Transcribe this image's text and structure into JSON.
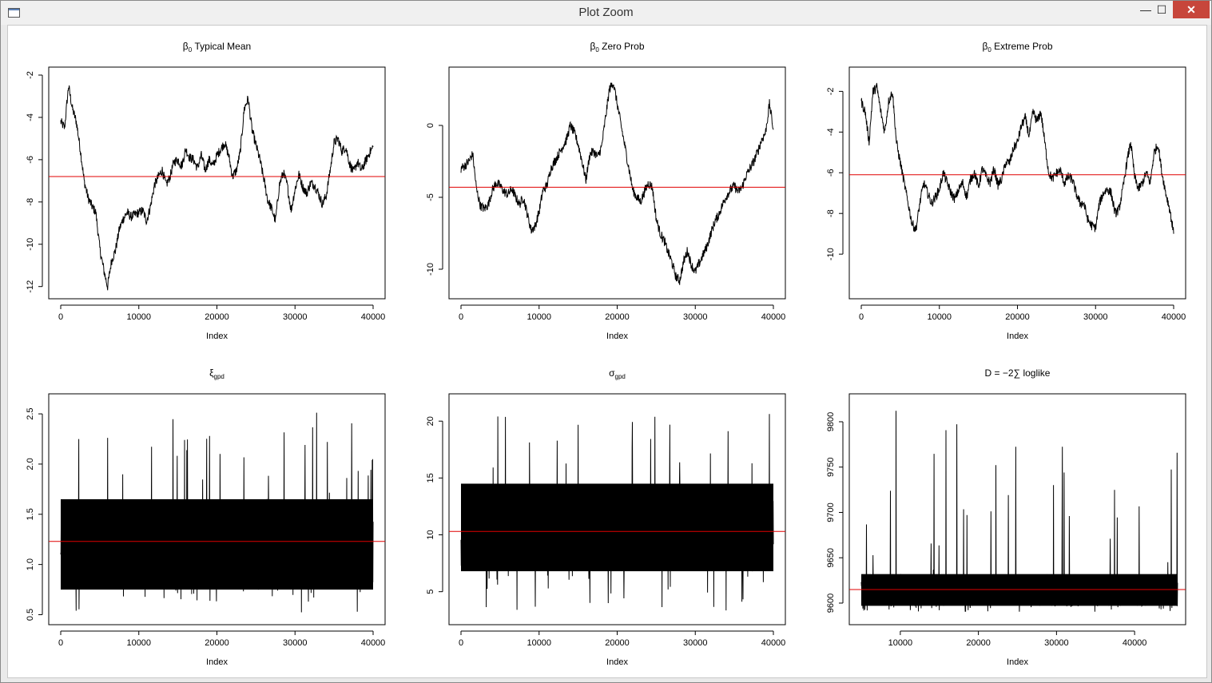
{
  "window": {
    "title": "Plot Zoom",
    "minimize_glyph": "—",
    "maximize_glyph": "☐",
    "close_glyph": "✕"
  },
  "chart_data": [
    {
      "type": "line",
      "title_sym": "β",
      "title_sub": "0",
      "title_rest": " Typical Mean",
      "xlabel": "Index",
      "xlim": [
        0,
        40000
      ],
      "ylim": [
        -12.2,
        -2.0
      ],
      "xticks": [
        0,
        10000,
        20000,
        30000,
        40000
      ],
      "yticks": [
        -12,
        -10,
        -8,
        -6,
        -4,
        -2
      ],
      "mean_line": -6.8,
      "x": [
        0,
        500,
        1000,
        1500,
        2000,
        2500,
        3000,
        3500,
        4000,
        4500,
        5000,
        5500,
        6000,
        6500,
        7000,
        7500,
        8000,
        8500,
        9000,
        9500,
        10000,
        10500,
        11000,
        11500,
        12000,
        12500,
        13000,
        13500,
        14000,
        14500,
        15000,
        15500,
        16000,
        16500,
        17000,
        17500,
        18000,
        18500,
        19000,
        19500,
        20000,
        20500,
        21000,
        21500,
        22000,
        22500,
        23000,
        23500,
        24000,
        24500,
        25000,
        25500,
        26000,
        26500,
        27000,
        27500,
        28000,
        28500,
        29000,
        29500,
        30000,
        30500,
        31000,
        31500,
        32000,
        32500,
        33000,
        33500,
        34000,
        34500,
        35000,
        35500,
        36000,
        36500,
        37000,
        37500,
        38000,
        38500,
        39000,
        39500,
        40000
      ],
      "y": [
        -4.2,
        -4.5,
        -2.5,
        -3.6,
        -4.2,
        -5.5,
        -7.0,
        -7.8,
        -8.2,
        -8.5,
        -10.2,
        -11.2,
        -12.0,
        -10.8,
        -10.3,
        -9.3,
        -8.8,
        -8.5,
        -8.7,
        -8.6,
        -8.5,
        -8.4,
        -8.9,
        -8.2,
        -7.2,
        -6.8,
        -6.5,
        -7.2,
        -6.8,
        -6.1,
        -6.0,
        -6.3,
        -5.5,
        -5.9,
        -6.0,
        -6.4,
        -5.8,
        -6.5,
        -6.0,
        -6.3,
        -5.8,
        -5.5,
        -5.2,
        -5.8,
        -6.8,
        -6.5,
        -5.6,
        -3.6,
        -3.1,
        -4.6,
        -5.3,
        -6.0,
        -6.9,
        -7.9,
        -8.3,
        -8.9,
        -7.2,
        -6.6,
        -7.2,
        -8.4,
        -7.4,
        -6.7,
        -7.3,
        -7.6,
        -7.1,
        -7.2,
        -7.6,
        -8.1,
        -7.7,
        -6.5,
        -5.2,
        -5.0,
        -5.6,
        -5.4,
        -6.2,
        -6.6,
        -6.1,
        -6.5,
        -6.1,
        -5.7,
        -5.4
      ]
    },
    {
      "type": "line",
      "title_sym": "β",
      "title_sub": "0",
      "title_rest": " Zero Prob",
      "xlabel": "Index",
      "xlim": [
        0,
        40000
      ],
      "ylim": [
        -11.5,
        3.5
      ],
      "xticks": [
        0,
        10000,
        20000,
        30000,
        40000
      ],
      "yticks": [
        -10,
        -5,
        0
      ],
      "mean_line": -4.3,
      "x": [
        0,
        500,
        1000,
        1500,
        2000,
        2500,
        3000,
        3500,
        4000,
        4500,
        5000,
        5500,
        6000,
        6500,
        7000,
        7500,
        8000,
        8500,
        9000,
        9500,
        10000,
        10500,
        11000,
        11500,
        12000,
        12500,
        13000,
        13500,
        14000,
        14500,
        15000,
        15500,
        16000,
        16500,
        17000,
        17500,
        18000,
        18500,
        19000,
        19500,
        20000,
        20500,
        21000,
        21500,
        22000,
        22500,
        23000,
        23500,
        24000,
        24500,
        25000,
        25500,
        26000,
        26500,
        27000,
        27500,
        28000,
        28500,
        29000,
        29500,
        30000,
        30500,
        31000,
        31500,
        32000,
        32500,
        33000,
        33500,
        34000,
        34500,
        35000,
        35500,
        36000,
        36500,
        37000,
        37500,
        38000,
        38500,
        39000,
        39500,
        40000
      ],
      "y": [
        -3.0,
        -2.8,
        -2.5,
        -2.0,
        -4.5,
        -5.6,
        -5.8,
        -5.5,
        -4.5,
        -4.0,
        -4.2,
        -4.6,
        -4.8,
        -4.4,
        -5.0,
        -5.5,
        -5.0,
        -6.2,
        -7.3,
        -7.0,
        -6.0,
        -4.5,
        -4.2,
        -3.0,
        -2.5,
        -2.0,
        -1.5,
        -1.0,
        0.0,
        -0.5,
        -1.3,
        -2.5,
        -3.8,
        -2.0,
        -1.8,
        -2.2,
        -1.5,
        0.5,
        2.5,
        3.0,
        1.5,
        0.0,
        -1.5,
        -3.0,
        -4.5,
        -5.0,
        -5.3,
        -4.6,
        -4.0,
        -4.3,
        -6.5,
        -7.5,
        -8.0,
        -8.8,
        -9.5,
        -10.5,
        -10.8,
        -9.5,
        -8.7,
        -9.7,
        -10.2,
        -9.6,
        -9.0,
        -8.4,
        -7.5,
        -6.7,
        -6.2,
        -5.5,
        -4.9,
        -4.5,
        -4.2,
        -4.6,
        -4.3,
        -3.5,
        -3.0,
        -2.5,
        -1.8,
        -1.0,
        -0.5,
        1.5,
        -0.3
      ]
    },
    {
      "type": "line",
      "title_sym": "β",
      "title_sub": "0",
      "title_rest": " Extreme Prob",
      "xlabel": "Index",
      "xlim": [
        0,
        40000
      ],
      "ylim": [
        -11.8,
        -1.2
      ],
      "xticks": [
        0,
        10000,
        20000,
        30000,
        40000
      ],
      "yticks": [
        -10,
        -8,
        -6,
        -4,
        -2
      ],
      "mean_line": -6.1,
      "x": [
        0,
        500,
        1000,
        1500,
        2000,
        2500,
        3000,
        3500,
        4000,
        4500,
        5000,
        5500,
        6000,
        6500,
        7000,
        7500,
        8000,
        8500,
        9000,
        9500,
        10000,
        10500,
        11000,
        11500,
        12000,
        12500,
        13000,
        13500,
        14000,
        14500,
        15000,
        15500,
        16000,
        16500,
        17000,
        17500,
        18000,
        18500,
        19000,
        19500,
        20000,
        20500,
        21000,
        21500,
        22000,
        22500,
        23000,
        23500,
        24000,
        24500,
        25000,
        25500,
        26000,
        26500,
        27000,
        27500,
        28000,
        28500,
        29000,
        29500,
        30000,
        30500,
        31000,
        31500,
        32000,
        32500,
        33000,
        33500,
        34000,
        34500,
        35000,
        35500,
        36000,
        36500,
        37000,
        37500,
        38000,
        38500,
        39000,
        39500,
        40000
      ],
      "y": [
        -2.5,
        -3.0,
        -4.5,
        -2.0,
        -1.8,
        -3.0,
        -4.0,
        -2.5,
        -2.0,
        -4.5,
        -5.5,
        -6.5,
        -7.5,
        -8.5,
        -8.8,
        -7.5,
        -6.5,
        -7.0,
        -7.5,
        -7.2,
        -6.8,
        -6.0,
        -6.5,
        -7.0,
        -7.3,
        -6.8,
        -6.5,
        -7.2,
        -6.3,
        -6.0,
        -6.7,
        -5.8,
        -6.2,
        -6.5,
        -5.8,
        -6.6,
        -6.3,
        -5.5,
        -5.5,
        -4.8,
        -4.5,
        -3.7,
        -3.3,
        -4.2,
        -3.0,
        -3.5,
        -3.0,
        -4.5,
        -6.0,
        -6.3,
        -6.0,
        -5.9,
        -6.5,
        -6.2,
        -6.3,
        -7.0,
        -7.5,
        -7.5,
        -8.3,
        -8.6,
        -8.7,
        -7.5,
        -7.0,
        -6.8,
        -7.0,
        -8.0,
        -7.8,
        -6.8,
        -5.5,
        -4.5,
        -6.2,
        -6.8,
        -6.5,
        -6.0,
        -6.5,
        -5.0,
        -4.6,
        -6.0,
        -7.0,
        -7.8,
        -9.0
      ]
    },
    {
      "type": "noise",
      "title_sym": "ξ",
      "title_sub": "gpd",
      "title_rest": "",
      "xlabel": "Index",
      "xlim": [
        0,
        40000
      ],
      "ylim": [
        0.48,
        2.62
      ],
      "xticks": [
        0,
        10000,
        20000,
        30000,
        40000
      ],
      "yticks": [
        0.5,
        1.0,
        1.5,
        2.0,
        2.5
      ],
      "y_tick_format": "1dp",
      "mean_line": 1.23,
      "band_low": 0.75,
      "band_high": 1.65,
      "spike_max": 2.56,
      "spike_min": 0.52
    },
    {
      "type": "noise",
      "title_sym": "σ",
      "title_sub": "gpd",
      "title_rest": "",
      "xlabel": "Index",
      "xlim": [
        0,
        40000
      ],
      "ylim": [
        2.8,
        21.7
      ],
      "xticks": [
        0,
        10000,
        20000,
        30000,
        40000
      ],
      "yticks": [
        5,
        10,
        15,
        20
      ],
      "mean_line": 10.3,
      "band_low": 6.8,
      "band_high": 14.5,
      "spike_max": 20.8,
      "spike_min": 3.3
    },
    {
      "type": "noise",
      "title_sym": "",
      "title_sub": "",
      "title_rest": "D = −2∑ loglike",
      "xlabel": "Index",
      "xlim": [
        5000,
        45000
      ],
      "xdata": [
        5000,
        45500
      ],
      "ylim": [
        9585,
        9822
      ],
      "xticks": [
        10000,
        20000,
        30000,
        40000
      ],
      "yticks": [
        9600,
        9650,
        9700,
        9750,
        9800
      ],
      "mean_line": 9615,
      "band_low": 9597,
      "band_high": 9632,
      "spike_max": 9815,
      "spike_min": 9590
    }
  ]
}
